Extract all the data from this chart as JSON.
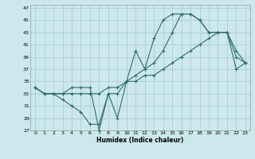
{
  "xlabel": "Humidex (Indice chaleur)",
  "bg_color": "#cce8ec",
  "grid_color": "#aacdd4",
  "line_color": "#2d6e65",
  "xlim": [
    -0.5,
    23.5
  ],
  "ylim": [
    27,
    47.5
  ],
  "yticks": [
    27,
    29,
    31,
    33,
    35,
    37,
    39,
    41,
    43,
    45,
    47
  ],
  "xticks": [
    0,
    1,
    2,
    3,
    4,
    5,
    6,
    7,
    8,
    9,
    10,
    11,
    12,
    13,
    14,
    15,
    16,
    17,
    18,
    19,
    20,
    21,
    22,
    23
  ],
  "series": [
    {
      "x": [
        0,
        1,
        2,
        3,
        4,
        5,
        6,
        7,
        8,
        9,
        10,
        11,
        12,
        13,
        14,
        15,
        16,
        17,
        18,
        19,
        20,
        21,
        22,
        23
      ],
      "y": [
        34,
        33,
        33,
        33,
        34,
        34,
        34,
        27,
        33,
        29,
        35,
        40,
        37,
        42,
        45,
        46,
        46,
        46,
        45,
        43,
        43,
        43,
        39,
        38
      ]
    },
    {
      "x": [
        0,
        1,
        2,
        3,
        4,
        5,
        6,
        7,
        8,
        9,
        10,
        11,
        12,
        13,
        14,
        15,
        16,
        17,
        18,
        19,
        20,
        21,
        22,
        23
      ],
      "y": [
        34,
        33,
        33,
        32,
        31,
        30,
        28,
        28,
        33,
        33,
        35,
        36,
        37,
        38,
        40,
        43,
        46,
        46,
        45,
        43,
        43,
        43,
        40,
        38
      ]
    },
    {
      "x": [
        0,
        1,
        2,
        3,
        4,
        5,
        6,
        7,
        8,
        9,
        10,
        11,
        12,
        13,
        14,
        15,
        16,
        17,
        18,
        19,
        20,
        21,
        22,
        23
      ],
      "y": [
        34,
        33,
        33,
        33,
        33,
        33,
        33,
        33,
        34,
        34,
        35,
        35,
        36,
        36,
        37,
        38,
        39,
        40,
        41,
        42,
        43,
        43,
        37,
        38
      ]
    }
  ]
}
